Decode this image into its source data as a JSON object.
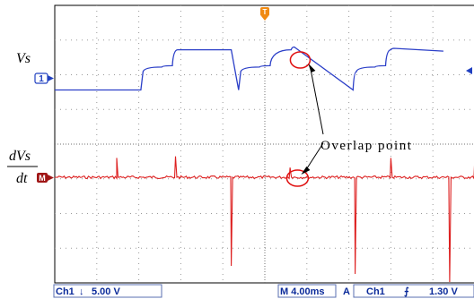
{
  "chart_data": {
    "type": "line",
    "title": "",
    "grid": true,
    "colors": {
      "vs_trace": "#2b3fc8",
      "dvs_trace": "#dd1f1f",
      "trigger_marker": "#f08a12",
      "ch1_marker": "#2040c0",
      "math_marker": "#a01616",
      "annotation_circle": "#e01010",
      "status_text": "#0a2a9a"
    },
    "series": [
      {
        "name": "Vs",
        "t_ms": [
          0,
          8.2,
          8.4,
          10.2,
          11.2,
          11.7,
          12.0,
          16.8,
          17.5,
          17.7,
          19.5,
          20.5,
          22.5,
          22.8,
          28.4,
          28.7,
          30.5,
          31.5,
          32.0,
          32.3,
          37.0
        ],
        "v": [
          2.0,
          2.0,
          4.6,
          5.3,
          5.5,
          7.8,
          7.8,
          7.8,
          2.0,
          4.6,
          5.3,
          5.5,
          7.8,
          8.2,
          2.0,
          4.6,
          5.3,
          5.5,
          7.8,
          8.0,
          7.6
        ]
      },
      {
        "name": "dVs/dt",
        "spikes": [
          {
            "t_ms": 5.9,
            "amplitude": 1.2
          },
          {
            "t_ms": 11.5,
            "amplitude": 1.3
          },
          {
            "t_ms": 16.8,
            "amplitude": -5.5
          },
          {
            "t_ms": 22.4,
            "amplitude": 0.6
          },
          {
            "t_ms": 28.6,
            "amplitude": -6.0
          },
          {
            "t_ms": 32.0,
            "amplitude": 1.2
          },
          {
            "t_ms": 37.6,
            "amplitude": -6.5
          },
          {
            "t_ms": 40.0,
            "amplitude": 1.3
          }
        ]
      }
    ],
    "labels": {
      "ch1_label": "Vs",
      "math_label_top": "dVs",
      "math_label_bottom": "dt",
      "annotation": "Overlap point",
      "ch1_marker": "1",
      "math_marker": "M",
      "trigger_marker": "T"
    },
    "status_bar": {
      "ch1": "Ch1",
      "coupling_symbol": "↓",
      "ch1_scale": "5.00 V",
      "timebase": "M 4.00ms",
      "acq": "A",
      "trigger_source": "Ch1",
      "trigger_slope": "⨍",
      "trigger_level": "1.30 V"
    }
  }
}
